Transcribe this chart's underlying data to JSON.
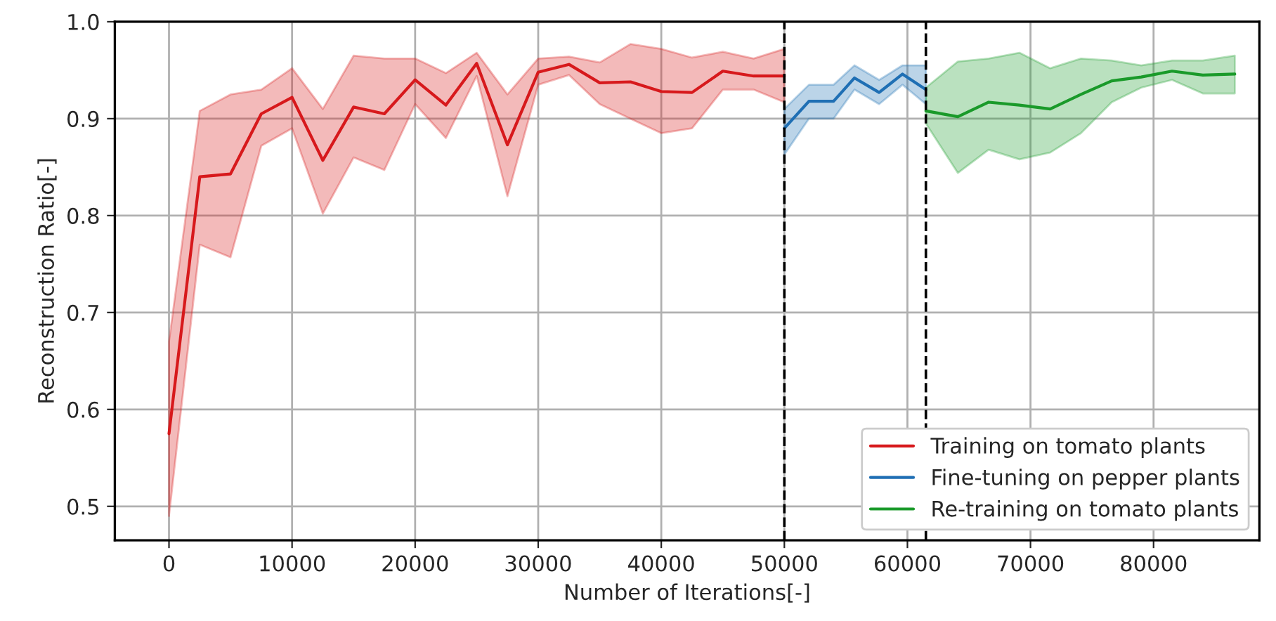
{
  "chart_data": {
    "type": "line",
    "xlabel": "Number of Iterations[-]",
    "ylabel": "Reconstruction Ratio[-]",
    "xlim": [
      -4400,
      88600
    ],
    "ylim": [
      0.465,
      1.0
    ],
    "xticks": [
      0,
      10000,
      20000,
      30000,
      40000,
      50000,
      60000,
      70000,
      80000
    ],
    "yticks": [
      0.5,
      0.6,
      0.7,
      0.8,
      0.9,
      {
        "value": 1.0,
        "label": "1.0"
      }
    ],
    "grid": true,
    "legend": "bottom right",
    "line_style": "solid",
    "ref_lines": [
      {
        "axis": "x",
        "value": 50000,
        "color": "#000000",
        "line_style": "dashed"
      },
      {
        "axis": "x",
        "value": 61500,
        "color": "#000000",
        "line_style": "dashed"
      }
    ],
    "series": [
      {
        "name": "Training on tomato plants",
        "color": "#d7191c",
        "x": [
          0,
          2500,
          5000,
          7500,
          10000,
          12500,
          15000,
          17500,
          20000,
          22500,
          25000,
          27500,
          30000,
          32500,
          35000,
          37500,
          40000,
          42500,
          45000,
          47500,
          50000
        ],
        "values": [
          0.575,
          0.84,
          0.843,
          0.905,
          0.922,
          0.857,
          0.912,
          0.905,
          0.94,
          0.914,
          0.957,
          0.873,
          0.948,
          0.956,
          0.937,
          0.938,
          0.928,
          0.927,
          0.949,
          0.944,
          0.944
        ],
        "lower": [
          0.49,
          0.77,
          0.757,
          0.872,
          0.89,
          0.802,
          0.86,
          0.847,
          0.915,
          0.88,
          0.944,
          0.82,
          0.935,
          0.945,
          0.915,
          0.9,
          0.885,
          0.89,
          0.93,
          0.93,
          0.917
        ],
        "upper": [
          0.67,
          0.908,
          0.925,
          0.93,
          0.952,
          0.91,
          0.965,
          0.962,
          0.962,
          0.947,
          0.968,
          0.925,
          0.962,
          0.964,
          0.958,
          0.977,
          0.972,
          0.963,
          0.969,
          0.962,
          0.972
        ]
      },
      {
        "name": "Fine-tuning on pepper plants",
        "color": "#1f6fb4",
        "x": [
          50000,
          52000,
          54000,
          55700,
          57700,
          59600,
          61500
        ],
        "values": [
          0.89,
          0.918,
          0.918,
          0.942,
          0.927,
          0.946,
          0.93
        ],
        "lower": [
          0.863,
          0.9,
          0.9,
          0.93,
          0.915,
          0.935,
          0.915
        ],
        "upper": [
          0.91,
          0.935,
          0.935,
          0.955,
          0.94,
          0.955,
          0.955
        ]
      },
      {
        "name": "Re-training on tomato plants",
        "color": "#1a9a2a",
        "x": [
          61500,
          64100,
          66600,
          69100,
          71600,
          74100,
          76600,
          79000,
          81500,
          84000,
          86600
        ],
        "values": [
          0.908,
          0.902,
          0.917,
          0.914,
          0.91,
          0.925,
          0.939,
          0.943,
          0.949,
          0.945,
          0.946
        ],
        "lower": [
          0.895,
          0.844,
          0.868,
          0.858,
          0.865,
          0.885,
          0.917,
          0.932,
          0.94,
          0.926,
          0.926
        ],
        "upper": [
          0.932,
          0.959,
          0.962,
          0.968,
          0.952,
          0.962,
          0.96,
          0.955,
          0.96,
          0.96,
          0.965
        ]
      }
    ]
  }
}
